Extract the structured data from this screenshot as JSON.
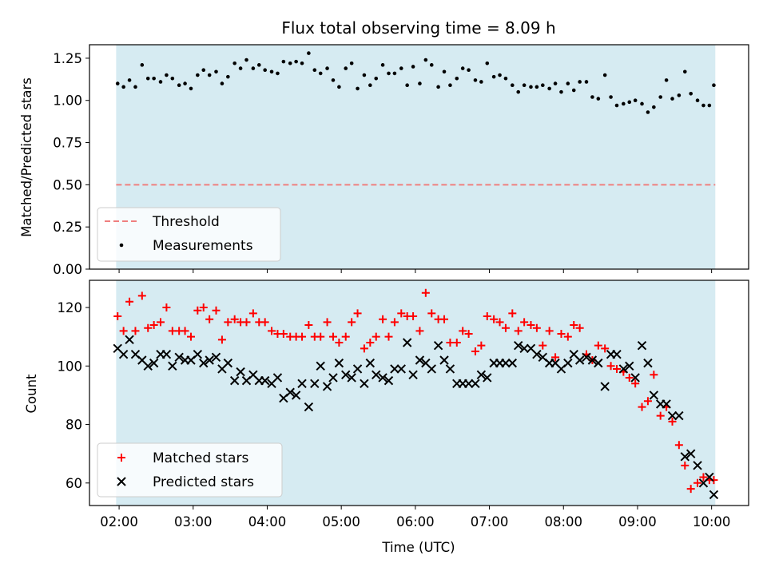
{
  "chart_data": [
    {
      "type": "scatter",
      "title": "Flux total observing time = 8.09 h",
      "xlabel": "",
      "ylabel": "Matched/Predicted stars",
      "xlim": [
        1.6,
        10.5
      ],
      "ylim": [
        0.0,
        1.33
      ],
      "xticks": [
        2,
        3,
        4,
        5,
        6,
        7,
        8,
        9,
        10
      ],
      "yticks": [
        0.0,
        0.25,
        0.5,
        0.75,
        1.0,
        1.25
      ],
      "ytick_labels": [
        "0.00",
        "0.25",
        "0.50",
        "0.75",
        "1.00",
        "1.25"
      ],
      "observing_window": [
        1.96,
        10.05
      ],
      "threshold": 0.5,
      "legend_position": "lower-left",
      "legend": {
        "threshold": "Threshold",
        "measurements": "Measurements"
      },
      "series": [
        {
          "name": "Measurements",
          "x": [
            1.98,
            2.06,
            2.14,
            2.22,
            2.31,
            2.39,
            2.47,
            2.56,
            2.64,
            2.72,
            2.81,
            2.89,
            2.97,
            3.06,
            3.14,
            3.22,
            3.31,
            3.39,
            3.47,
            3.56,
            3.64,
            3.72,
            3.81,
            3.89,
            3.97,
            4.06,
            4.14,
            4.22,
            4.31,
            4.39,
            4.47,
            4.56,
            4.64,
            4.72,
            4.81,
            4.89,
            4.97,
            5.06,
            5.14,
            5.22,
            5.31,
            5.39,
            5.47,
            5.56,
            5.64,
            5.72,
            5.81,
            5.89,
            5.97,
            6.06,
            6.14,
            6.22,
            6.31,
            6.39,
            6.47,
            6.56,
            6.64,
            6.72,
            6.81,
            6.89,
            6.97,
            7.06,
            7.14,
            7.22,
            7.31,
            7.39,
            7.47,
            7.56,
            7.64,
            7.72,
            7.81,
            7.89,
            7.97,
            8.06,
            8.14,
            8.22,
            8.31,
            8.39,
            8.47,
            8.56,
            8.64,
            8.72,
            8.81,
            8.89,
            8.97,
            9.06,
            9.14,
            9.22,
            9.31,
            9.39,
            9.47,
            9.56,
            9.64,
            9.72,
            9.81,
            9.89,
            9.97,
            10.03
          ],
          "y": [
            1.1,
            1.08,
            1.12,
            1.08,
            1.21,
            1.13,
            1.13,
            1.11,
            1.15,
            1.13,
            1.09,
            1.1,
            1.07,
            1.15,
            1.18,
            1.15,
            1.17,
            1.1,
            1.14,
            1.22,
            1.19,
            1.24,
            1.19,
            1.21,
            1.18,
            1.17,
            1.16,
            1.23,
            1.22,
            1.23,
            1.22,
            1.28,
            1.18,
            1.16,
            1.19,
            1.12,
            1.08,
            1.19,
            1.22,
            1.07,
            1.15,
            1.09,
            1.13,
            1.21,
            1.16,
            1.16,
            1.19,
            1.09,
            1.2,
            1.1,
            1.24,
            1.21,
            1.08,
            1.17,
            1.09,
            1.13,
            1.19,
            1.18,
            1.12,
            1.11,
            1.22,
            1.14,
            1.15,
            1.13,
            1.09,
            1.05,
            1.09,
            1.08,
            1.08,
            1.09,
            1.07,
            1.1,
            1.05,
            1.1,
            1.06,
            1.11,
            1.11,
            1.02,
            1.01,
            1.15,
            1.02,
            0.97,
            0.98,
            0.99,
            1.0,
            0.98,
            0.93,
            0.96,
            1.02,
            1.12,
            1.01,
            1.03,
            1.17,
            1.04,
            1.0,
            0.97,
            0.97,
            1.09
          ]
        }
      ]
    },
    {
      "type": "scatter",
      "title": "",
      "xlabel": "Time (UTC)",
      "ylabel": "Count",
      "xlim": [
        1.6,
        10.5
      ],
      "ylim": [
        52.3,
        129.3
      ],
      "xticks": [
        2,
        3,
        4,
        5,
        6,
        7,
        8,
        9,
        10
      ],
      "xtick_labels": [
        "02:00",
        "03:00",
        "04:00",
        "05:00",
        "06:00",
        "07:00",
        "08:00",
        "09:00",
        "10:00"
      ],
      "yticks": [
        60,
        80,
        100,
        120
      ],
      "ytick_labels": [
        "60",
        "80",
        "100",
        "120"
      ],
      "observing_window": [
        1.96,
        10.05
      ],
      "legend_position": "lower-left",
      "legend": {
        "matched": "Matched stars",
        "predicted": "Predicted stars"
      },
      "series": [
        {
          "name": "Matched stars",
          "color": "#ff0000",
          "marker": "plus",
          "x": [
            1.98,
            2.06,
            2.14,
            2.22,
            2.31,
            2.39,
            2.47,
            2.56,
            2.64,
            2.72,
            2.81,
            2.89,
            2.97,
            3.06,
            3.14,
            3.22,
            3.31,
            3.39,
            3.47,
            3.56,
            3.64,
            3.72,
            3.81,
            3.89,
            3.97,
            4.06,
            4.14,
            4.22,
            4.31,
            4.39,
            4.47,
            4.56,
            4.64,
            4.72,
            4.81,
            4.89,
            4.97,
            5.06,
            5.14,
            5.22,
            5.31,
            5.39,
            5.47,
            5.56,
            5.64,
            5.72,
            5.81,
            5.89,
            5.97,
            6.06,
            6.14,
            6.22,
            6.31,
            6.39,
            6.47,
            6.56,
            6.64,
            6.72,
            6.81,
            6.89,
            6.97,
            7.06,
            7.14,
            7.22,
            7.31,
            7.39,
            7.47,
            7.56,
            7.64,
            7.72,
            7.81,
            7.89,
            7.97,
            8.06,
            8.14,
            8.22,
            8.31,
            8.39,
            8.47,
            8.56,
            8.64,
            8.72,
            8.81,
            8.89,
            8.97,
            9.06,
            9.14,
            9.22,
            9.31,
            9.39,
            9.47,
            9.56,
            9.64,
            9.72,
            9.81,
            9.89,
            9.97,
            10.03
          ],
          "y": [
            117,
            112,
            122,
            112,
            124,
            113,
            114,
            115,
            120,
            112,
            112,
            112,
            110,
            119,
            120,
            116,
            119,
            109,
            115,
            116,
            115,
            115,
            118,
            115,
            115,
            112,
            111,
            111,
            110,
            110,
            110,
            114,
            110,
            110,
            115,
            110,
            108,
            110,
            115,
            118,
            106,
            108,
            110,
            116,
            110,
            115,
            118,
            117,
            117,
            112,
            125,
            118,
            116,
            116,
            108,
            108,
            112,
            111,
            105,
            107,
            117,
            116,
            115,
            113,
            118,
            112,
            115,
            114,
            113,
            107,
            112,
            103,
            111,
            110,
            114,
            113,
            104,
            102,
            107,
            106,
            100,
            99,
            98,
            96,
            94,
            86,
            88,
            97,
            83,
            86,
            81,
            73,
            66,
            58,
            60,
            62,
            61,
            61
          ]
        },
        {
          "name": "Predicted stars",
          "color": "#000000",
          "marker": "x",
          "x": [
            1.98,
            2.06,
            2.14,
            2.22,
            2.31,
            2.39,
            2.47,
            2.56,
            2.64,
            2.72,
            2.81,
            2.89,
            2.97,
            3.06,
            3.14,
            3.22,
            3.31,
            3.39,
            3.47,
            3.56,
            3.64,
            3.72,
            3.81,
            3.89,
            3.97,
            4.06,
            4.14,
            4.22,
            4.31,
            4.39,
            4.47,
            4.56,
            4.64,
            4.72,
            4.81,
            4.89,
            4.97,
            5.06,
            5.14,
            5.22,
            5.31,
            5.39,
            5.47,
            5.56,
            5.64,
            5.72,
            5.81,
            5.89,
            5.97,
            6.06,
            6.14,
            6.22,
            6.31,
            6.39,
            6.47,
            6.56,
            6.64,
            6.72,
            6.81,
            6.89,
            6.97,
            7.06,
            7.14,
            7.22,
            7.31,
            7.39,
            7.47,
            7.56,
            7.64,
            7.72,
            7.81,
            7.89,
            7.97,
            8.06,
            8.14,
            8.22,
            8.31,
            8.39,
            8.47,
            8.56,
            8.64,
            8.72,
            8.81,
            8.89,
            8.97,
            9.06,
            9.14,
            9.22,
            9.31,
            9.39,
            9.47,
            9.56,
            9.64,
            9.72,
            9.81,
            9.89,
            9.97,
            10.03
          ],
          "y": [
            106,
            104,
            109,
            104,
            102,
            100,
            101,
            104,
            104,
            100,
            103,
            102,
            102,
            104,
            101,
            102,
            103,
            99,
            101,
            95,
            98,
            95,
            97,
            95,
            95,
            94,
            96,
            89,
            91,
            90,
            94,
            86,
            94,
            100,
            93,
            96,
            101,
            97,
            96,
            99,
            94,
            101,
            97,
            96,
            95,
            99,
            99,
            108,
            97,
            102,
            101,
            99,
            107,
            102,
            99,
            94,
            94,
            94,
            94,
            97,
            96,
            101,
            101,
            101,
            101,
            107,
            106,
            106,
            104,
            103,
            101,
            101,
            99,
            101,
            104,
            102,
            103,
            102,
            101,
            93,
            104,
            104,
            99,
            100,
            96,
            107,
            101,
            90,
            87,
            87,
            83,
            83,
            69,
            70,
            66,
            60,
            62,
            56
          ]
        }
      ]
    }
  ]
}
